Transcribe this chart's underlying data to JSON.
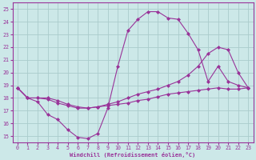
{
  "xlabel": "Windchill (Refroidissement éolien,°C)",
  "xlim": [
    -0.5,
    23.5
  ],
  "ylim": [
    14.5,
    25.5
  ],
  "yticks": [
    15,
    16,
    17,
    18,
    19,
    20,
    21,
    22,
    23,
    24,
    25
  ],
  "xticks": [
    0,
    1,
    2,
    3,
    4,
    5,
    6,
    7,
    8,
    9,
    10,
    11,
    12,
    13,
    14,
    15,
    16,
    17,
    18,
    19,
    20,
    21,
    22,
    23
  ],
  "line_color": "#993399",
  "bg_color": "#cce8e8",
  "grid_color": "#aacccc",
  "curve1_x": [
    0,
    1,
    2,
    3,
    4,
    5,
    6,
    7,
    8,
    9,
    10,
    11,
    12,
    13,
    14,
    15,
    16,
    17,
    18,
    19,
    20,
    21,
    22,
    23
  ],
  "curve1_y": [
    18.8,
    18.0,
    17.7,
    16.7,
    16.3,
    15.5,
    14.9,
    14.8,
    15.2,
    17.2,
    20.5,
    23.3,
    24.2,
    24.8,
    24.8,
    24.3,
    24.2,
    23.1,
    21.8,
    19.3,
    20.5,
    19.3,
    19.0,
    18.8
  ],
  "curve2_x": [
    0,
    1,
    2,
    3,
    4,
    5,
    6,
    7,
    8,
    9,
    10,
    11,
    12,
    13,
    14,
    15,
    16,
    17,
    18,
    19,
    20,
    21,
    22,
    23
  ],
  "curve2_y": [
    18.8,
    18.0,
    18.0,
    18.0,
    17.8,
    17.5,
    17.3,
    17.2,
    17.3,
    17.5,
    17.7,
    18.0,
    18.3,
    18.5,
    18.7,
    19.0,
    19.3,
    19.8,
    20.5,
    21.5,
    22.0,
    21.8,
    20.0,
    18.8
  ],
  "curve3_x": [
    0,
    1,
    2,
    3,
    4,
    5,
    6,
    7,
    8,
    9,
    10,
    11,
    12,
    13,
    14,
    15,
    16,
    17,
    18,
    19,
    20,
    21,
    22,
    23
  ],
  "curve3_y": [
    18.8,
    18.0,
    18.0,
    17.9,
    17.6,
    17.4,
    17.2,
    17.2,
    17.3,
    17.4,
    17.5,
    17.6,
    17.8,
    17.9,
    18.1,
    18.3,
    18.4,
    18.5,
    18.6,
    18.7,
    18.8,
    18.7,
    18.7,
    18.8
  ]
}
